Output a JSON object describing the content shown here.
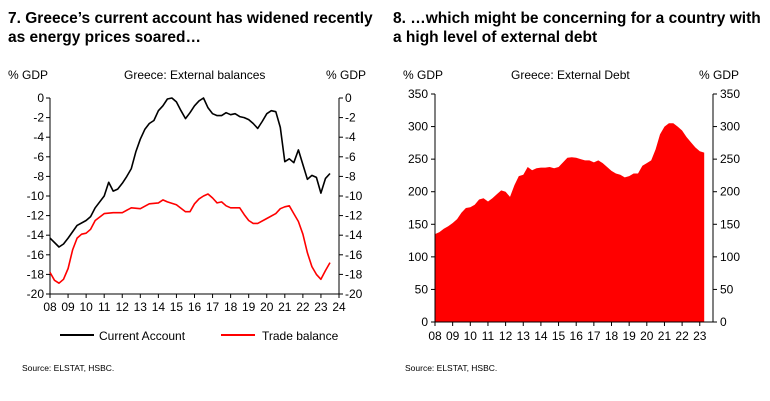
{
  "charts": [
    {
      "title": "7. Greece’s current account has widened recently as energy prices soared…",
      "subtitle": "Greece: External balances",
      "left_unit": "% GDP",
      "right_unit": "% GDP",
      "source": "Source: ELSTAT, HSBC.",
      "y_ticks": [
        "0",
        "-2",
        "-4",
        "-6",
        "-8",
        "-10",
        "-12",
        "-14",
        "-16",
        "-18",
        "-20"
      ],
      "x_ticks": [
        "08",
        "09",
        "10",
        "11",
        "12",
        "13",
        "14",
        "15",
        "16",
        "17",
        "18",
        "19",
        "20",
        "21",
        "22",
        "23",
        "24"
      ],
      "legend": [
        {
          "label": "Current Account",
          "color": "#000000"
        },
        {
          "label": "Trade balance",
          "color": "#ff0000"
        }
      ]
    },
    {
      "title": "8. …which might be concerning for a country with a high level of external debt",
      "subtitle": "Greece: External Debt",
      "left_unit": "% GDP",
      "right_unit": "% GDP",
      "source": "Source: ELSTAT, HSBC.",
      "y_ticks": [
        "350",
        "300",
        "250",
        "200",
        "150",
        "100",
        "50",
        "0"
      ],
      "x_ticks": [
        "08",
        "09",
        "10",
        "11",
        "12",
        "13",
        "14",
        "15",
        "16",
        "17",
        "18",
        "19",
        "20",
        "21",
        "22",
        "23"
      ],
      "fill_color": "#ff0000"
    }
  ],
  "chart_data": [
    {
      "type": "line",
      "title": "Greece: External balances",
      "ylabel": "% GDP",
      "ylim": [
        -20,
        0
      ],
      "xlim": [
        2008,
        2024
      ],
      "legend_position": "bottom",
      "grid": false,
      "series": [
        {
          "name": "Current Account",
          "color": "#000000",
          "points": [
            [
              2008.0,
              -14.3
            ],
            [
              2008.5,
              -15.2
            ],
            [
              2008.75,
              -14.9
            ],
            [
              2009.0,
              -14.3
            ],
            [
              2009.5,
              -13.0
            ],
            [
              2010.0,
              -12.5
            ],
            [
              2010.25,
              -12.1
            ],
            [
              2010.5,
              -11.2
            ],
            [
              2011.0,
              -10.0
            ],
            [
              2011.25,
              -8.6
            ],
            [
              2011.5,
              -9.5
            ],
            [
              2011.75,
              -9.3
            ],
            [
              2012.0,
              -8.7
            ],
            [
              2012.25,
              -8.0
            ],
            [
              2012.5,
              -7.2
            ],
            [
              2012.75,
              -5.5
            ],
            [
              2013.0,
              -4.2
            ],
            [
              2013.25,
              -3.2
            ],
            [
              2013.5,
              -2.6
            ],
            [
              2013.75,
              -2.3
            ],
            [
              2014.0,
              -1.3
            ],
            [
              2014.25,
              -0.8
            ],
            [
              2014.5,
              -0.1
            ],
            [
              2014.75,
              0.0
            ],
            [
              2015.0,
              -0.4
            ],
            [
              2015.25,
              -1.3
            ],
            [
              2015.5,
              -2.1
            ],
            [
              2015.75,
              -1.5
            ],
            [
              2016.0,
              -0.8
            ],
            [
              2016.25,
              -0.3
            ],
            [
              2016.5,
              0.0
            ],
            [
              2016.75,
              -1.0
            ],
            [
              2017.0,
              -1.6
            ],
            [
              2017.25,
              -1.8
            ],
            [
              2017.5,
              -1.8
            ],
            [
              2017.75,
              -1.5
            ],
            [
              2018.0,
              -1.7
            ],
            [
              2018.25,
              -1.6
            ],
            [
              2018.5,
              -1.9
            ],
            [
              2018.75,
              -2.0
            ],
            [
              2019.0,
              -2.2
            ],
            [
              2019.25,
              -2.6
            ],
            [
              2019.5,
              -3.1
            ],
            [
              2019.75,
              -2.4
            ],
            [
              2020.0,
              -1.6
            ],
            [
              2020.25,
              -1.3
            ],
            [
              2020.5,
              -1.4
            ],
            [
              2020.75,
              -3.0
            ],
            [
              2021.0,
              -6.5
            ],
            [
              2021.25,
              -6.2
            ],
            [
              2021.5,
              -6.6
            ],
            [
              2021.75,
              -5.3
            ],
            [
              2022.0,
              -6.8
            ],
            [
              2022.25,
              -8.3
            ],
            [
              2022.5,
              -7.9
            ],
            [
              2022.75,
              -8.1
            ],
            [
              2023.0,
              -9.7
            ],
            [
              2023.25,
              -8.2
            ],
            [
              2023.5,
              -7.7
            ]
          ]
        },
        {
          "name": "Trade balance",
          "color": "#ff0000",
          "points": [
            [
              2008.0,
              -17.8
            ],
            [
              2008.25,
              -18.6
            ],
            [
              2008.5,
              -18.9
            ],
            [
              2008.75,
              -18.5
            ],
            [
              2009.0,
              -17.4
            ],
            [
              2009.25,
              -15.5
            ],
            [
              2009.5,
              -14.3
            ],
            [
              2009.75,
              -13.9
            ],
            [
              2010.0,
              -13.8
            ],
            [
              2010.25,
              -13.4
            ],
            [
              2010.5,
              -12.5
            ],
            [
              2011.0,
              -11.8
            ],
            [
              2011.5,
              -11.7
            ],
            [
              2012.0,
              -11.7
            ],
            [
              2012.5,
              -11.2
            ],
            [
              2013.0,
              -11.3
            ],
            [
              2013.5,
              -10.8
            ],
            [
              2014.0,
              -10.7
            ],
            [
              2014.25,
              -10.4
            ],
            [
              2014.5,
              -10.6
            ],
            [
              2015.0,
              -10.9
            ],
            [
              2015.5,
              -11.6
            ],
            [
              2015.75,
              -11.6
            ],
            [
              2016.0,
              -10.8
            ],
            [
              2016.25,
              -10.3
            ],
            [
              2016.5,
              -10.0
            ],
            [
              2016.75,
              -9.8
            ],
            [
              2017.0,
              -10.2
            ],
            [
              2017.25,
              -10.7
            ],
            [
              2017.5,
              -10.6
            ],
            [
              2017.75,
              -11.0
            ],
            [
              2018.0,
              -11.2
            ],
            [
              2018.5,
              -11.2
            ],
            [
              2018.75,
              -11.9
            ],
            [
              2019.0,
              -12.5
            ],
            [
              2019.25,
              -12.8
            ],
            [
              2019.5,
              -12.8
            ],
            [
              2020.0,
              -12.3
            ],
            [
              2020.5,
              -11.8
            ],
            [
              2020.75,
              -11.3
            ],
            [
              2021.0,
              -11.1
            ],
            [
              2021.25,
              -11.0
            ],
            [
              2021.5,
              -11.8
            ],
            [
              2021.75,
              -12.6
            ],
            [
              2022.0,
              -13.9
            ],
            [
              2022.25,
              -15.8
            ],
            [
              2022.5,
              -17.2
            ],
            [
              2022.75,
              -18.0
            ],
            [
              2023.0,
              -18.5
            ],
            [
              2023.25,
              -17.6
            ],
            [
              2023.5,
              -16.8
            ]
          ]
        }
      ]
    },
    {
      "type": "area",
      "title": "Greece: External Debt",
      "ylabel": "% GDP",
      "ylim": [
        0,
        350
      ],
      "xlim": [
        2008,
        2023.75
      ],
      "grid": false,
      "series": [
        {
          "color": "#ff0000",
          "points": [
            [
              2008.0,
              135
            ],
            [
              2008.25,
              138
            ],
            [
              2008.5,
              143
            ],
            [
              2008.75,
              147
            ],
            [
              2009.0,
              152
            ],
            [
              2009.25,
              158
            ],
            [
              2009.5,
              168
            ],
            [
              2009.75,
              175
            ],
            [
              2010.0,
              176
            ],
            [
              2010.25,
              180
            ],
            [
              2010.5,
              188
            ],
            [
              2010.75,
              190
            ],
            [
              2011.0,
              185
            ],
            [
              2011.25,
              190
            ],
            [
              2011.5,
              196
            ],
            [
              2011.75,
              202
            ],
            [
              2012.0,
              200
            ],
            [
              2012.25,
              192
            ],
            [
              2012.5,
              210
            ],
            [
              2012.75,
              224
            ],
            [
              2013.0,
              226
            ],
            [
              2013.25,
              238
            ],
            [
              2013.5,
              233
            ],
            [
              2013.75,
              236
            ],
            [
              2014.0,
              237
            ],
            [
              2014.25,
              237
            ],
            [
              2014.5,
              238
            ],
            [
              2014.75,
              236
            ],
            [
              2015.0,
              238
            ],
            [
              2015.25,
              245
            ],
            [
              2015.5,
              252
            ],
            [
              2015.75,
              253
            ],
            [
              2016.0,
              252
            ],
            [
              2016.25,
              250
            ],
            [
              2016.5,
              248
            ],
            [
              2016.75,
              248
            ],
            [
              2017.0,
              245
            ],
            [
              2017.25,
              248
            ],
            [
              2017.5,
              244
            ],
            [
              2017.75,
              238
            ],
            [
              2018.0,
              232
            ],
            [
              2018.25,
              228
            ],
            [
              2018.5,
              226
            ],
            [
              2018.75,
              222
            ],
            [
              2019.0,
              224
            ],
            [
              2019.25,
              228
            ],
            [
              2019.5,
              228
            ],
            [
              2019.75,
              240
            ],
            [
              2020.0,
              244
            ],
            [
              2020.25,
              248
            ],
            [
              2020.5,
              265
            ],
            [
              2020.75,
              288
            ],
            [
              2021.0,
              300
            ],
            [
              2021.25,
              305
            ],
            [
              2021.5,
              305
            ],
            [
              2021.75,
              300
            ],
            [
              2022.0,
              294
            ],
            [
              2022.25,
              284
            ],
            [
              2022.5,
              276
            ],
            [
              2022.75,
              268
            ],
            [
              2023.0,
              262
            ],
            [
              2023.25,
              260
            ]
          ]
        }
      ]
    }
  ]
}
